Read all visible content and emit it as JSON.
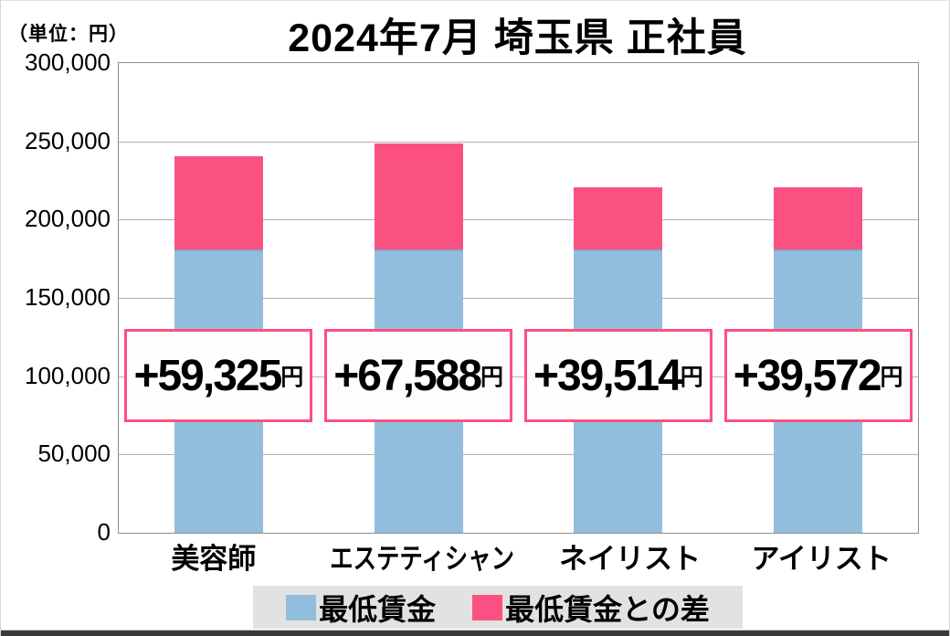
{
  "header": {
    "title": "2024年7月 埼玉県 正社員",
    "unit_note": "（単位：円）"
  },
  "colors": {
    "min_wage_blue": "#92bede",
    "min_wage_blue_edge": "#7eadd2",
    "diff_pink": "#fb5182",
    "label_box_border": "#fb5182",
    "legend_bg": "#e2e2e2",
    "gridline": "#b0b0b0",
    "plot_border": "#8f8f8f",
    "bottom_bar": "#3a3a3a"
  },
  "legend": {
    "items": [
      {
        "label": "最低賃金",
        "color": "#92bede"
      },
      {
        "label": "最低賃金との差",
        "color": "#fb5182"
      }
    ]
  },
  "chart_data": {
    "type": "bar",
    "stacked": true,
    "title": "2024年7月 埼玉県 正社員",
    "unit": "円",
    "categories": [
      "美容師",
      "エステティシャン",
      "ネイリスト",
      "アイリスト"
    ],
    "series": [
      {
        "name": "最低賃金",
        "color": "#92bede",
        "values": [
          180928,
          180928,
          180928,
          180928
        ]
      },
      {
        "name": "最低賃金との差",
        "color": "#fb5182",
        "values": [
          59325,
          67588,
          39514,
          39572
        ]
      }
    ],
    "totals": [
      240253,
      248516,
      220442,
      220500
    ],
    "diff_labels": [
      "+59,325",
      "+67,588",
      "+39,514",
      "+39,572"
    ],
    "unit_suffix": "円",
    "y_ticks": [
      "300,000",
      "250,000",
      "200,000",
      "150,000",
      "100,000",
      "50,000",
      "0"
    ],
    "ylim": [
      0,
      300000
    ],
    "grid": true,
    "legend_position": "bottom"
  }
}
